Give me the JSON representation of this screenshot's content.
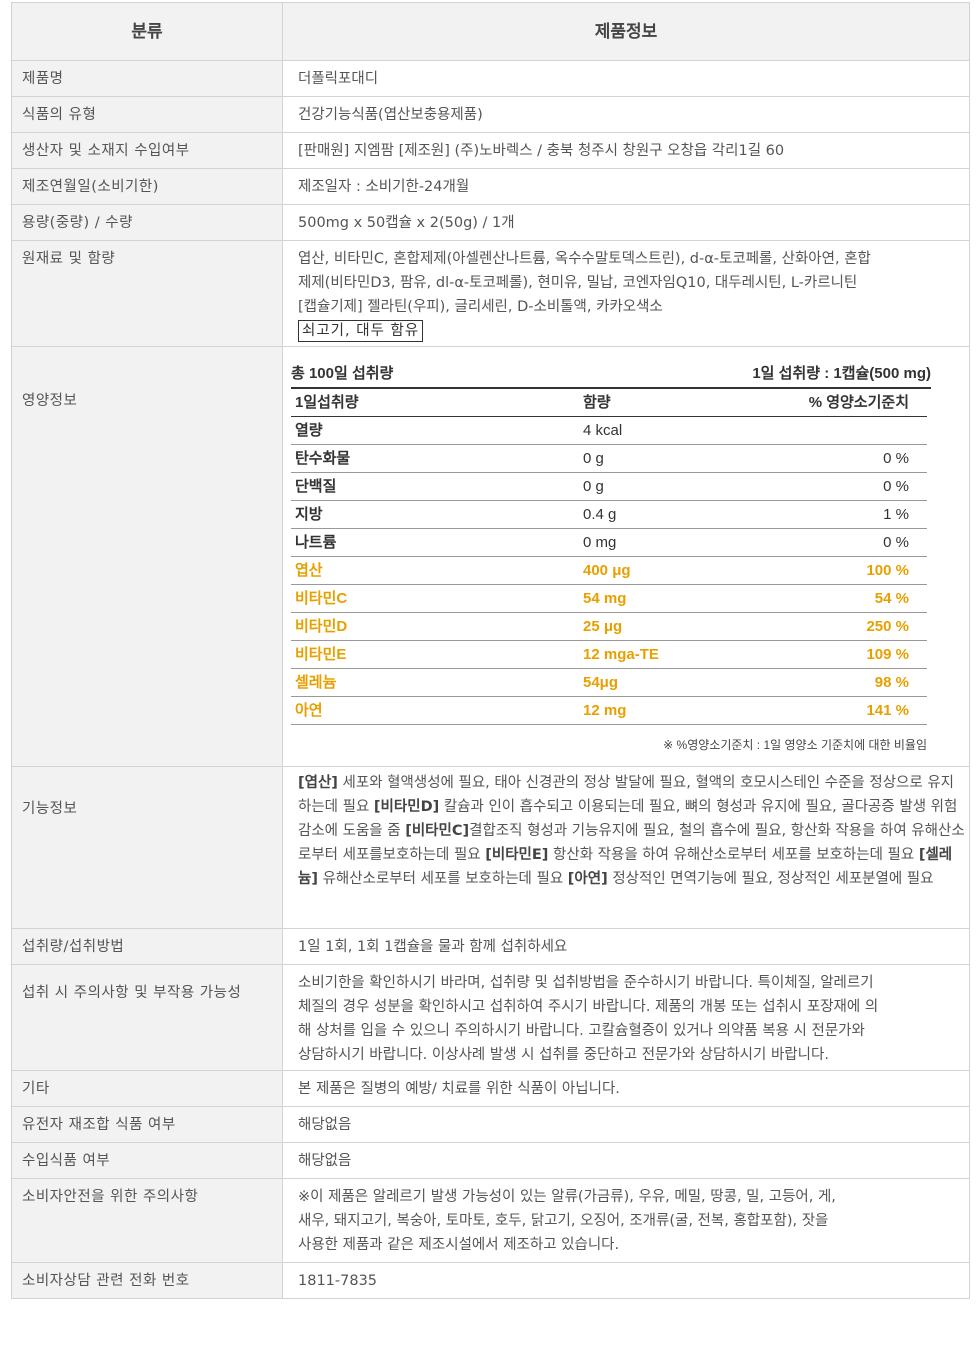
{
  "header": {
    "category": "분류",
    "product_info": "제품정보"
  },
  "rows": {
    "name": {
      "label": "제품명",
      "value": "더폴릭포대디"
    },
    "type": {
      "label": "식품의 유형",
      "value": "건강기능식품(엽산보충용제품)"
    },
    "maker": {
      "label": "생산자 및 소재지 수입여부",
      "value": "[판매원] 지엠팜 [제조원] (주)노바렉스 / 충북 청주시 창원구 오창읍 각리1길 60"
    },
    "date": {
      "label": "제조연월일(소비기한)",
      "value": "제조일자 : 소비기한-24개월"
    },
    "volume": {
      "label": "용량(중량) / 수량",
      "value": "500mg x 50캡슐 x 2(50g) / 1개"
    },
    "ingredients": {
      "label": "원재료 및 함량",
      "lines": [
        "엽산, 비타민C, 혼합제제(아셀렌산나트륨, 옥수수말토덱스트린), d-α-토코페롤, 산화아연, 혼합",
        "제제(비타민D3, 팜유, dl-α-토코페롤), 현미유, 밀납, 코엔자임Q10, 대두레시틴, L-카르니틴",
        "[캡슐기제] 젤라틴(우피), 글리세린, D-소비톨액, 카카오색소"
      ],
      "boxed": "쇠고기, 대두 함유"
    },
    "nutrition": {
      "label": "영양정보"
    },
    "function": {
      "label": "기능정보"
    },
    "intake": {
      "label": "섭취량/섭취방법",
      "value": "1일 1회, 1회 1캡슐을 물과 함께 섭취하세요"
    },
    "caution": {
      "label": "섭취 시 주의사항 및 부작용 가능성",
      "lines": [
        "소비기한을 확인하시기 바라며, 섭취량 및 섭취방법을 준수하시기 바랍니다. 특이체질, 알레르기",
        "체질의 경우 성분을 확인하시고 섭취하여 주시기 바랍니다. 제품의 개봉 또는 섭취시 포장재에 의",
        "해 상처를 입을 수 있으니 주의하시기 바랍니다. 고칼슘혈증이 있거나 의약품 복용 시 전문가와",
        "상담하시기 바랍니다. 이상사례 발생 시 섭취를 중단하고 전문가와 상담하시기 바랍니다."
      ]
    },
    "etc": {
      "label": "기타",
      "value": "본 제품은 질병의 예방/ 치료를 위한 식품이 아닙니다."
    },
    "gmo": {
      "label": "유전자 재조합 식품 여부",
      "value": "해당없음"
    },
    "import": {
      "label": "수입식품 여부",
      "value": "해당없음"
    },
    "safety": {
      "label": "소비자안전을 위한 주의사항",
      "lines": [
        "※이 제품은 알레르기 발생 가능성이 있는 알류(가금류), 우유, 메밀, 땅콩, 밀, 고등어, 게,",
        "새우, 돼지고기, 복숭아, 토마토, 호두, 닭고기, 오징어, 조개류(굴, 전복, 홍합포함), 잣을",
        "사용한 제품과 같은 제조시설에서 제조하고 있습니다."
      ]
    },
    "phone": {
      "label": "소비자상담 관련 전화 번호",
      "value": "1811-7835"
    }
  },
  "nutrition": {
    "total": "총 100일 섭취량",
    "serving": "1일 섭취량 : 1캡슐(500 mg)",
    "columns": [
      "1일섭취량",
      "함량",
      "% 영양소기준치"
    ],
    "highlight_color": "#e8a000",
    "items": [
      {
        "name": "열량",
        "amount": "4 kcal",
        "pct": ""
      },
      {
        "name": "탄수화물",
        "amount": "0 g",
        "pct": "0 %"
      },
      {
        "name": "단백질",
        "amount": "0 g",
        "pct": "0 %"
      },
      {
        "name": "지방",
        "amount": "0.4 g",
        "pct": "1 %"
      },
      {
        "name": "나트륨",
        "amount": "0 mg",
        "pct": "0 %"
      },
      {
        "name": "엽산",
        "amount": "400 μg",
        "pct": "100 %"
      },
      {
        "name": "비타민C",
        "amount": "54 mg",
        "pct": "54 %"
      },
      {
        "name": "비타민D",
        "amount": "25 μg",
        "pct": "250 %"
      },
      {
        "name": "비타민E",
        "amount": "12 mga-TE",
        "pct": "109 %"
      },
      {
        "name": "셀레늄",
        "amount": "54μg",
        "pct": "98 %"
      },
      {
        "name": "아연",
        "amount": "12 mg",
        "pct": "141 %"
      }
    ],
    "note": "※ %영양소기준치 : 1일 영양소 기준치에 대한 비율임"
  },
  "function_info": [
    {
      "tag": "[엽산]",
      "text": " 세포와 혈액생성에 필요, 태아 신경관의 정상 발달에 필요, 혈액의 호모시스테인 수준을 정상으로 유지하는데 필요 "
    },
    {
      "tag": "[비타민D]",
      "text": " 칼슘과 인이 흡수되고 이용되는데 필요, 뼈의 형성과 유지에 필요, 골다공증 발생 위험 감소에 도움을 줌 "
    },
    {
      "tag": "[비타민C]",
      "text": "결합조직 형성과 기능유지에 필요, 철의 흡수에 필요, 항산화 작용을 하여 유해산소로부터 세포를보호하는데 필요 "
    },
    {
      "tag": "[비타민E]",
      "text": " 항산화 작용을 하여 유해산소로부터 세포를 보호하는데 필요 "
    },
    {
      "tag": "[셀레늄]",
      "text": " 유해산소로부터 세포를 보호하는데 필요 "
    },
    {
      "tag": "[아연]",
      "text": " 정상적인 면역기능에 필요, 정상적인 세포분열에 필요"
    }
  ]
}
